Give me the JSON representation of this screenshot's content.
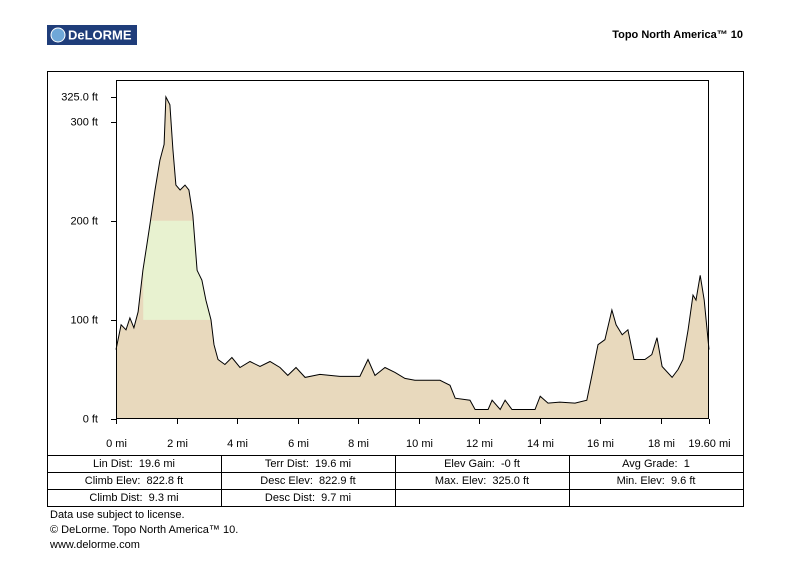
{
  "header": {
    "logo": "DeLORME",
    "title": "Topo North America™ 10"
  },
  "chart_data": {
    "type": "area",
    "color": "#e8d9bd",
    "line_color": "#000000",
    "x": [
      0,
      0.17,
      0.33,
      0.46,
      0.59,
      0.73,
      0.89,
      1.02,
      1.12,
      1.29,
      1.45,
      1.59,
      1.65,
      1.78,
      1.88,
      1.98,
      2.12,
      2.28,
      2.41,
      2.54,
      2.68,
      2.84,
      2.97,
      3.14,
      3.24,
      3.37,
      3.6,
      3.83,
      4.1,
      4.43,
      4.76,
      5.09,
      5.42,
      5.68,
      5.95,
      6.25,
      6.74,
      7.4,
      8.06,
      8.33,
      8.56,
      8.89,
      9.22,
      9.55,
      9.88,
      10.71,
      11.04,
      11.21,
      11.7,
      11.87,
      12.3,
      12.43,
      12.7,
      12.86,
      13.09,
      13.85,
      14.02,
      14.28,
      14.67,
      15.17,
      15.56,
      15.73,
      15.93,
      16.16,
      16.39,
      16.53,
      16.73,
      16.92,
      17.12,
      17.48,
      17.71,
      17.88,
      18.05,
      18.38,
      18.58,
      18.74,
      18.91,
      19.07,
      19.17,
      19.31,
      19.44,
      19.6
    ],
    "values": [
      70,
      95,
      90,
      102,
      92,
      108,
      150,
      176,
      196,
      231,
      261,
      277,
      325,
      317,
      272,
      236,
      231,
      236,
      231,
      206,
      150,
      140,
      120,
      100,
      75,
      60,
      55,
      62,
      52,
      58,
      53,
      58,
      52,
      44,
      52,
      42,
      45,
      43,
      43,
      60,
      44,
      52,
      47,
      41,
      39,
      39,
      34,
      21,
      19,
      9.6,
      9.6,
      19,
      9.6,
      19,
      9.6,
      9.6,
      23,
      16,
      17,
      16,
      19,
      44,
      75,
      80,
      110,
      95,
      85,
      90,
      60,
      60,
      65,
      82,
      53,
      42,
      50,
      60,
      90,
      125,
      120,
      145,
      120,
      70
    ],
    "band": {
      "xlim": [
        0.9,
        3.2
      ],
      "ylim": [
        100,
        200
      ],
      "color": "#e8f2d0"
    },
    "xlim": [
      0,
      19.6
    ],
    "ylim": [
      0,
      342
    ],
    "xticks": [
      {
        "value": 0,
        "label": "0 mi"
      },
      {
        "value": 2,
        "label": "2 mi"
      },
      {
        "value": 4,
        "label": "4 mi"
      },
      {
        "value": 6,
        "label": "6 mi"
      },
      {
        "value": 8,
        "label": "8 mi"
      },
      {
        "value": 10,
        "label": "10 mi"
      },
      {
        "value": 12,
        "label": "12 mi"
      },
      {
        "value": 14,
        "label": "14 mi"
      },
      {
        "value": 16,
        "label": "16 mi"
      },
      {
        "value": 18,
        "label": "18 mi"
      },
      {
        "value": 19.6,
        "label": "19.60 mi"
      }
    ],
    "yticks": [
      {
        "value": 0,
        "label": "0 ft"
      },
      {
        "value": 100,
        "label": "100 ft"
      },
      {
        "value": 200,
        "label": "200 ft"
      },
      {
        "value": 300,
        "label": "300 ft"
      },
      {
        "value": 325,
        "label": "325.0 ft"
      }
    ]
  },
  "stats": {
    "rows": [
      [
        "Lin Dist:  19.6 mi",
        "Terr Dist:  19.6 mi",
        "Elev Gain:  -0 ft",
        "Avg Grade:  1"
      ],
      [
        "Climb Elev:  822.8 ft",
        "Desc Elev:  822.9 ft",
        "Max. Elev:  325.0 ft",
        "Min. Elev:  9.6 ft"
      ],
      [
        "Climb Dist:  9.3 mi",
        "Desc Dist:  9.7 mi"
      ]
    ]
  },
  "footer": [
    "Data use subject to license.",
    "© DeLorme. Topo North America™ 10.",
    "www.delorme.com"
  ]
}
